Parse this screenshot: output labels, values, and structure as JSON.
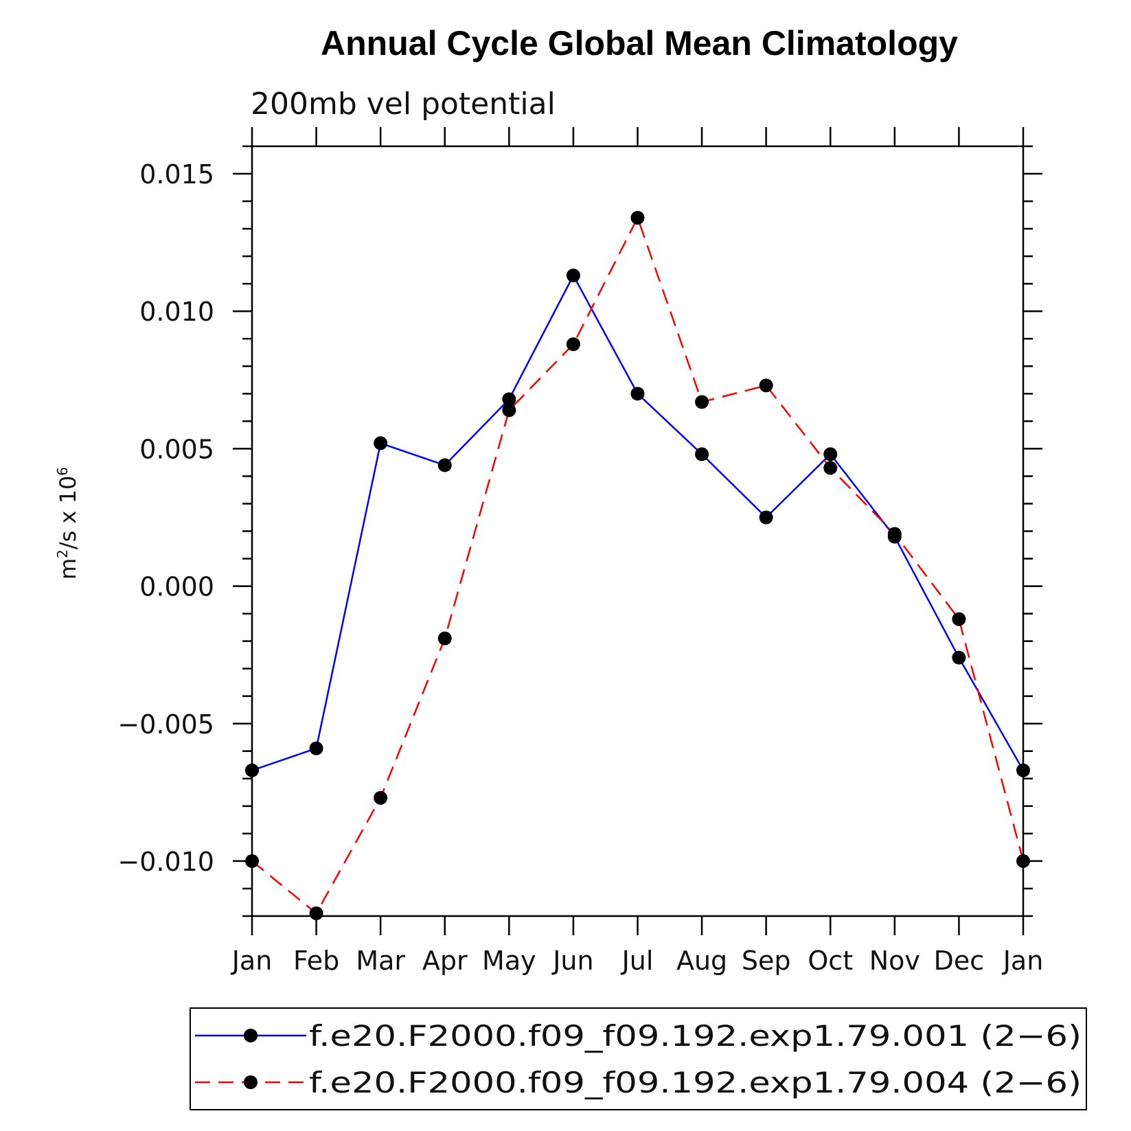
{
  "chart_data": {
    "type": "line",
    "title": "Annual Cycle Global Mean Climatology",
    "subtitle": "200mb vel potential",
    "ylabel_base": "m",
    "ylabel_sup1": "2",
    "ylabel_mid": "/s x 10",
    "ylabel_sup2": "6",
    "categories": [
      "Jan",
      "Feb",
      "Mar",
      "Apr",
      "May",
      "Jun",
      "Jul",
      "Aug",
      "Sep",
      "Oct",
      "Nov",
      "Dec",
      "Jan"
    ],
    "ylim": [
      -0.012,
      0.016
    ],
    "yticks": [
      0.015,
      0.01,
      0.005,
      0.0,
      -0.005,
      -0.01
    ],
    "ytick_labels": [
      "0.015",
      "0.010",
      "0.005",
      "0.000",
      "−0.005",
      "−0.010"
    ],
    "series": [
      {
        "name": "f.e20.F2000.f09_f09.192.exp1.79.001 (2−6)",
        "color": "#0000ff",
        "dashed": false,
        "values": [
          -0.0067,
          -0.0059,
          0.0052,
          0.0044,
          0.0068,
          0.0113,
          0.007,
          0.0048,
          0.0025,
          0.0048,
          0.0018,
          -0.0026,
          -0.0067
        ]
      },
      {
        "name": "f.e20.F2000.f09_f09.192.exp1.79.004 (2−6)",
        "color": "#ff0000",
        "dashed": true,
        "values": [
          -0.01,
          -0.0119,
          -0.0077,
          -0.0019,
          0.0064,
          0.0088,
          0.0134,
          0.0067,
          0.0073,
          0.0043,
          0.0019,
          -0.0012,
          -0.01
        ]
      }
    ],
    "legend_position": "bottom"
  }
}
